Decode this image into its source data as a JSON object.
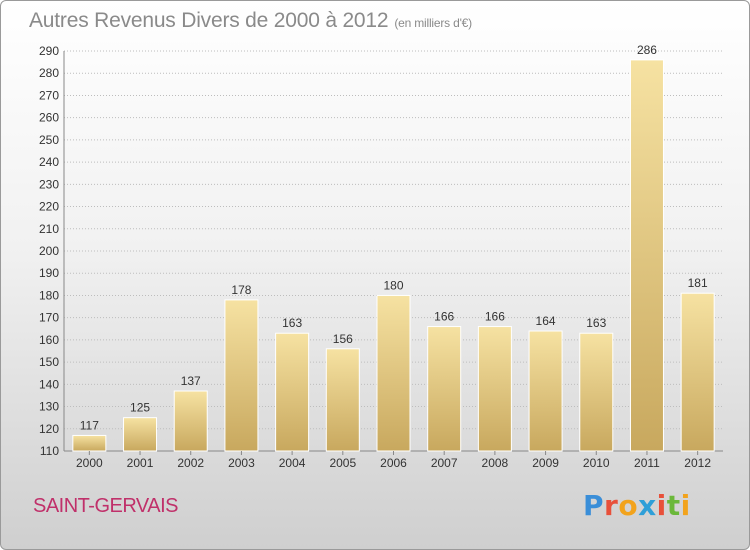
{
  "header": {
    "title": "Autres Revenus Divers de 2000 à 2012",
    "unit": "(en milliers d'€)"
  },
  "footer": {
    "city": "SAINT-GERVAIS",
    "logo_text": "Proxiti",
    "logo_letters": [
      {
        "ch": "P",
        "color": "#3a8ed8"
      },
      {
        "ch": "r",
        "color": "#e8503a"
      },
      {
        "ch": "o",
        "color": "#f2a31c"
      },
      {
        "ch": "x",
        "color": "#2e9fd8"
      },
      {
        "ch": "i",
        "color": "#e8503a"
      },
      {
        "ch": "t",
        "color": "#6bb83a"
      },
      {
        "ch": "i",
        "color": "#f2a31c"
      }
    ]
  },
  "colors": {
    "bar_top": "#f6e2a2",
    "bar_bottom": "#c8a85e",
    "grid": "#bdbdbd",
    "tick_text": "#333333",
    "label_text": "#333333"
  },
  "chart_data": {
    "type": "bar",
    "title": "Autres Revenus Divers de 2000 à 2012",
    "xlabel": "",
    "ylabel": "",
    "categories": [
      "2000",
      "2001",
      "2002",
      "2003",
      "2004",
      "2005",
      "2006",
      "2007",
      "2008",
      "2009",
      "2010",
      "2011",
      "2012"
    ],
    "values": [
      117,
      125,
      137,
      178,
      163,
      156,
      180,
      166,
      166,
      164,
      163,
      286,
      181
    ],
    "data_labels": [
      "117",
      "125",
      "137",
      "178",
      "163",
      "156",
      "180",
      "166",
      "166",
      "164",
      "163",
      "286",
      "181"
    ],
    "ylim": [
      110,
      290
    ],
    "yticks": [
      110,
      120,
      130,
      140,
      150,
      160,
      170,
      180,
      190,
      200,
      210,
      220,
      230,
      240,
      250,
      260,
      270,
      280,
      290
    ],
    "grid": true,
    "legend": "none"
  }
}
